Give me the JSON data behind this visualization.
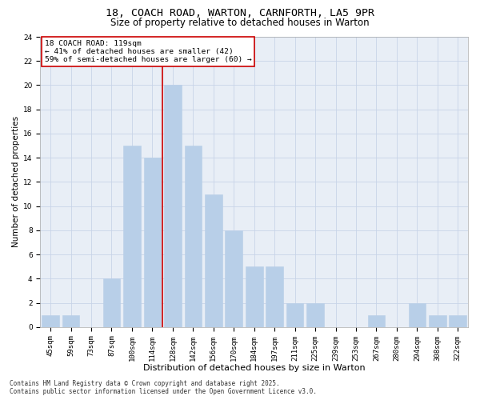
{
  "title1": "18, COACH ROAD, WARTON, CARNFORTH, LA5 9PR",
  "title2": "Size of property relative to detached houses in Warton",
  "xlabel": "Distribution of detached houses by size in Warton",
  "ylabel": "Number of detached properties",
  "categories": [
    "45sqm",
    "59sqm",
    "73sqm",
    "87sqm",
    "100sqm",
    "114sqm",
    "128sqm",
    "142sqm",
    "156sqm",
    "170sqm",
    "184sqm",
    "197sqm",
    "211sqm",
    "225sqm",
    "239sqm",
    "253sqm",
    "267sqm",
    "280sqm",
    "294sqm",
    "308sqm",
    "322sqm"
  ],
  "values": [
    1,
    1,
    0,
    4,
    15,
    14,
    20,
    15,
    11,
    8,
    5,
    5,
    2,
    2,
    0,
    0,
    1,
    0,
    2,
    1,
    1
  ],
  "bar_color": "#b8cfe8",
  "bar_edgecolor": "#b8cfe8",
  "highlight_index": 5,
  "highlight_color": "#cc0000",
  "annotation_text": "18 COACH ROAD: 119sqm\n← 41% of detached houses are smaller (42)\n59% of semi-detached houses are larger (60) →",
  "annotation_box_edgecolor": "#cc0000",
  "ylim": [
    0,
    24
  ],
  "yticks": [
    0,
    2,
    4,
    6,
    8,
    10,
    12,
    14,
    16,
    18,
    20,
    22,
    24
  ],
  "grid_color": "#c8d4e8",
  "background_color": "#e8eef6",
  "footer_text": "Contains HM Land Registry data © Crown copyright and database right 2025.\nContains public sector information licensed under the Open Government Licence v3.0.",
  "title_fontsize": 9.5,
  "subtitle_fontsize": 8.5,
  "tick_fontsize": 6.5,
  "xlabel_fontsize": 8,
  "ylabel_fontsize": 7.5,
  "annotation_fontsize": 6.8,
  "footer_fontsize": 5.5
}
